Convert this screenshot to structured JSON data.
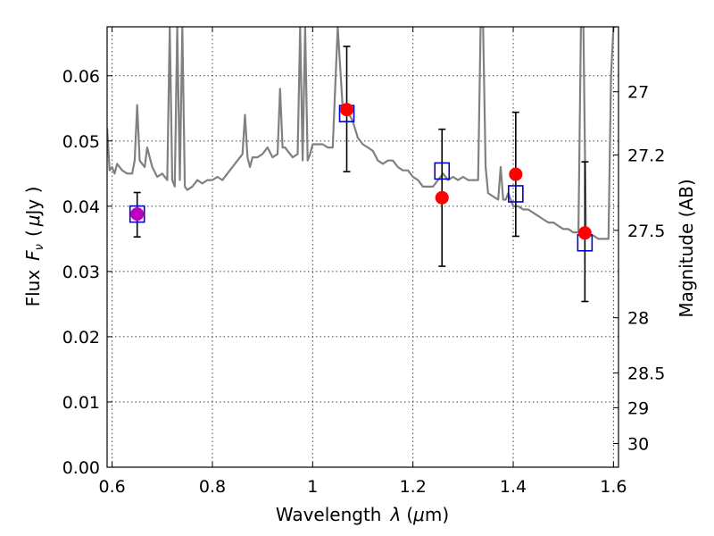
{
  "chart_data": {
    "type": "scatter",
    "xlabel_text": "Wavelength",
    "xlabel_symbol": "λ",
    "xlabel_unit_open": "(",
    "xlabel_unit_mu": "μ",
    "xlabel_unit_rest": "m)",
    "ylabel_text": "Flux",
    "ylabel_symbol": "F",
    "ylabel_sub": "ν",
    "ylabel_unit_open": "(",
    "ylabel_unit_mu": "μ",
    "ylabel_unit_rest": "Jy )",
    "y2label": "Magnitude (AB)",
    "xlim": [
      0.59,
      1.61
    ],
    "ylim": [
      0.0,
      0.0675
    ],
    "xticks": [
      0.6,
      0.8,
      1.0,
      1.2,
      1.4,
      1.6
    ],
    "xtick_labels": [
      "0.6",
      "0.8",
      "1",
      "1.2",
      "1.4",
      "1.6"
    ],
    "yticks": [
      0.0,
      0.01,
      0.02,
      0.03,
      0.04,
      0.05,
      0.06
    ],
    "ytick_labels": [
      "0.00",
      "0.01",
      "0.02",
      "0.03",
      "0.04",
      "0.05",
      "0.06"
    ],
    "y2ticks": [
      27,
      27.2,
      27.5,
      28,
      28.5,
      29,
      30
    ],
    "y2tick_labels": [
      "27",
      "27.2",
      "27.5",
      "28",
      "28.5",
      "29",
      "30"
    ],
    "grid": true,
    "colors": {
      "model": "#808080",
      "observed": "#ff0000",
      "synthetic": "#0000cc",
      "overlap": "#c000c0",
      "errorbar": "#000000"
    },
    "model_spectrum": {
      "x": [
        0.59,
        0.595,
        0.6,
        0.605,
        0.61,
        0.62,
        0.63,
        0.64,
        0.645,
        0.65,
        0.655,
        0.66,
        0.665,
        0.67,
        0.68,
        0.69,
        0.7,
        0.71,
        0.715,
        0.72,
        0.725,
        0.73,
        0.735,
        0.74,
        0.745,
        0.75,
        0.76,
        0.77,
        0.78,
        0.79,
        0.8,
        0.81,
        0.82,
        0.83,
        0.84,
        0.85,
        0.86,
        0.865,
        0.87,
        0.875,
        0.88,
        0.89,
        0.9,
        0.91,
        0.92,
        0.93,
        0.935,
        0.94,
        0.945,
        0.95,
        0.96,
        0.97,
        0.975,
        0.98,
        0.985,
        0.99,
        0.995,
        1.0,
        1.01,
        1.02,
        1.03,
        1.04,
        1.05,
        1.06,
        1.065,
        1.07,
        1.08,
        1.09,
        1.1,
        1.11,
        1.12,
        1.13,
        1.14,
        1.15,
        1.16,
        1.17,
        1.18,
        1.19,
        1.2,
        1.21,
        1.22,
        1.23,
        1.24,
        1.25,
        1.26,
        1.27,
        1.28,
        1.29,
        1.3,
        1.31,
        1.32,
        1.33,
        1.335,
        1.34,
        1.345,
        1.35,
        1.36,
        1.37,
        1.375,
        1.38,
        1.385,
        1.39,
        1.4,
        1.41,
        1.42,
        1.43,
        1.44,
        1.45,
        1.46,
        1.47,
        1.48,
        1.49,
        1.5,
        1.51,
        1.52,
        1.53,
        1.535,
        1.54,
        1.545,
        1.55,
        1.56,
        1.57,
        1.58,
        1.59,
        1.595,
        1.6,
        1.605
      ],
      "y": [
        0.052,
        0.0455,
        0.046,
        0.045,
        0.0465,
        0.0455,
        0.045,
        0.045,
        0.047,
        0.0555,
        0.047,
        0.0465,
        0.046,
        0.049,
        0.046,
        0.0445,
        0.045,
        0.044,
        0.0675,
        0.044,
        0.043,
        0.0675,
        0.044,
        0.0675,
        0.043,
        0.0425,
        0.043,
        0.044,
        0.0435,
        0.044,
        0.044,
        0.0445,
        0.044,
        0.045,
        0.046,
        0.047,
        0.048,
        0.054,
        0.0475,
        0.046,
        0.0475,
        0.0475,
        0.048,
        0.049,
        0.0475,
        0.048,
        0.058,
        0.049,
        0.049,
        0.0485,
        0.0475,
        0.048,
        0.0675,
        0.047,
        0.0675,
        0.047,
        0.048,
        0.0495,
        0.0495,
        0.0495,
        0.049,
        0.049,
        0.0675,
        0.055,
        0.055,
        0.0545,
        0.053,
        0.0505,
        0.0495,
        0.049,
        0.0485,
        0.047,
        0.0465,
        0.047,
        0.047,
        0.046,
        0.0455,
        0.0455,
        0.0445,
        0.044,
        0.043,
        0.043,
        0.043,
        0.044,
        0.045,
        0.044,
        0.0445,
        0.044,
        0.0445,
        0.044,
        0.044,
        0.044,
        0.0675,
        0.0675,
        0.046,
        0.042,
        0.0415,
        0.041,
        0.046,
        0.041,
        0.041,
        0.042,
        0.04,
        0.04,
        0.0395,
        0.0395,
        0.039,
        0.0385,
        0.038,
        0.0375,
        0.0375,
        0.037,
        0.0365,
        0.0365,
        0.036,
        0.036,
        0.0675,
        0.0675,
        0.036,
        0.0355,
        0.0355,
        0.035,
        0.035,
        0.035,
        0.06,
        0.0675,
        0.0675
      ]
    },
    "series": [
      {
        "marker": "circle",
        "x": [
          0.65,
          1.068,
          1.258,
          1.405,
          1.543
        ],
        "y": [
          0.0388,
          0.0548,
          0.0413,
          0.0449,
          0.0359
        ],
        "yerr_low": [
          0.0035,
          0.0095,
          0.0105,
          0.0095,
          0.0105
        ],
        "yerr_high": [
          0.0033,
          0.0097,
          0.0105,
          0.0095,
          0.0109
        ]
      },
      {
        "marker": "square",
        "x": [
          0.65,
          1.068,
          1.258,
          1.405,
          1.543
        ],
        "y": [
          0.0388,
          0.0542,
          0.0454,
          0.0419,
          0.0344
        ]
      }
    ]
  }
}
